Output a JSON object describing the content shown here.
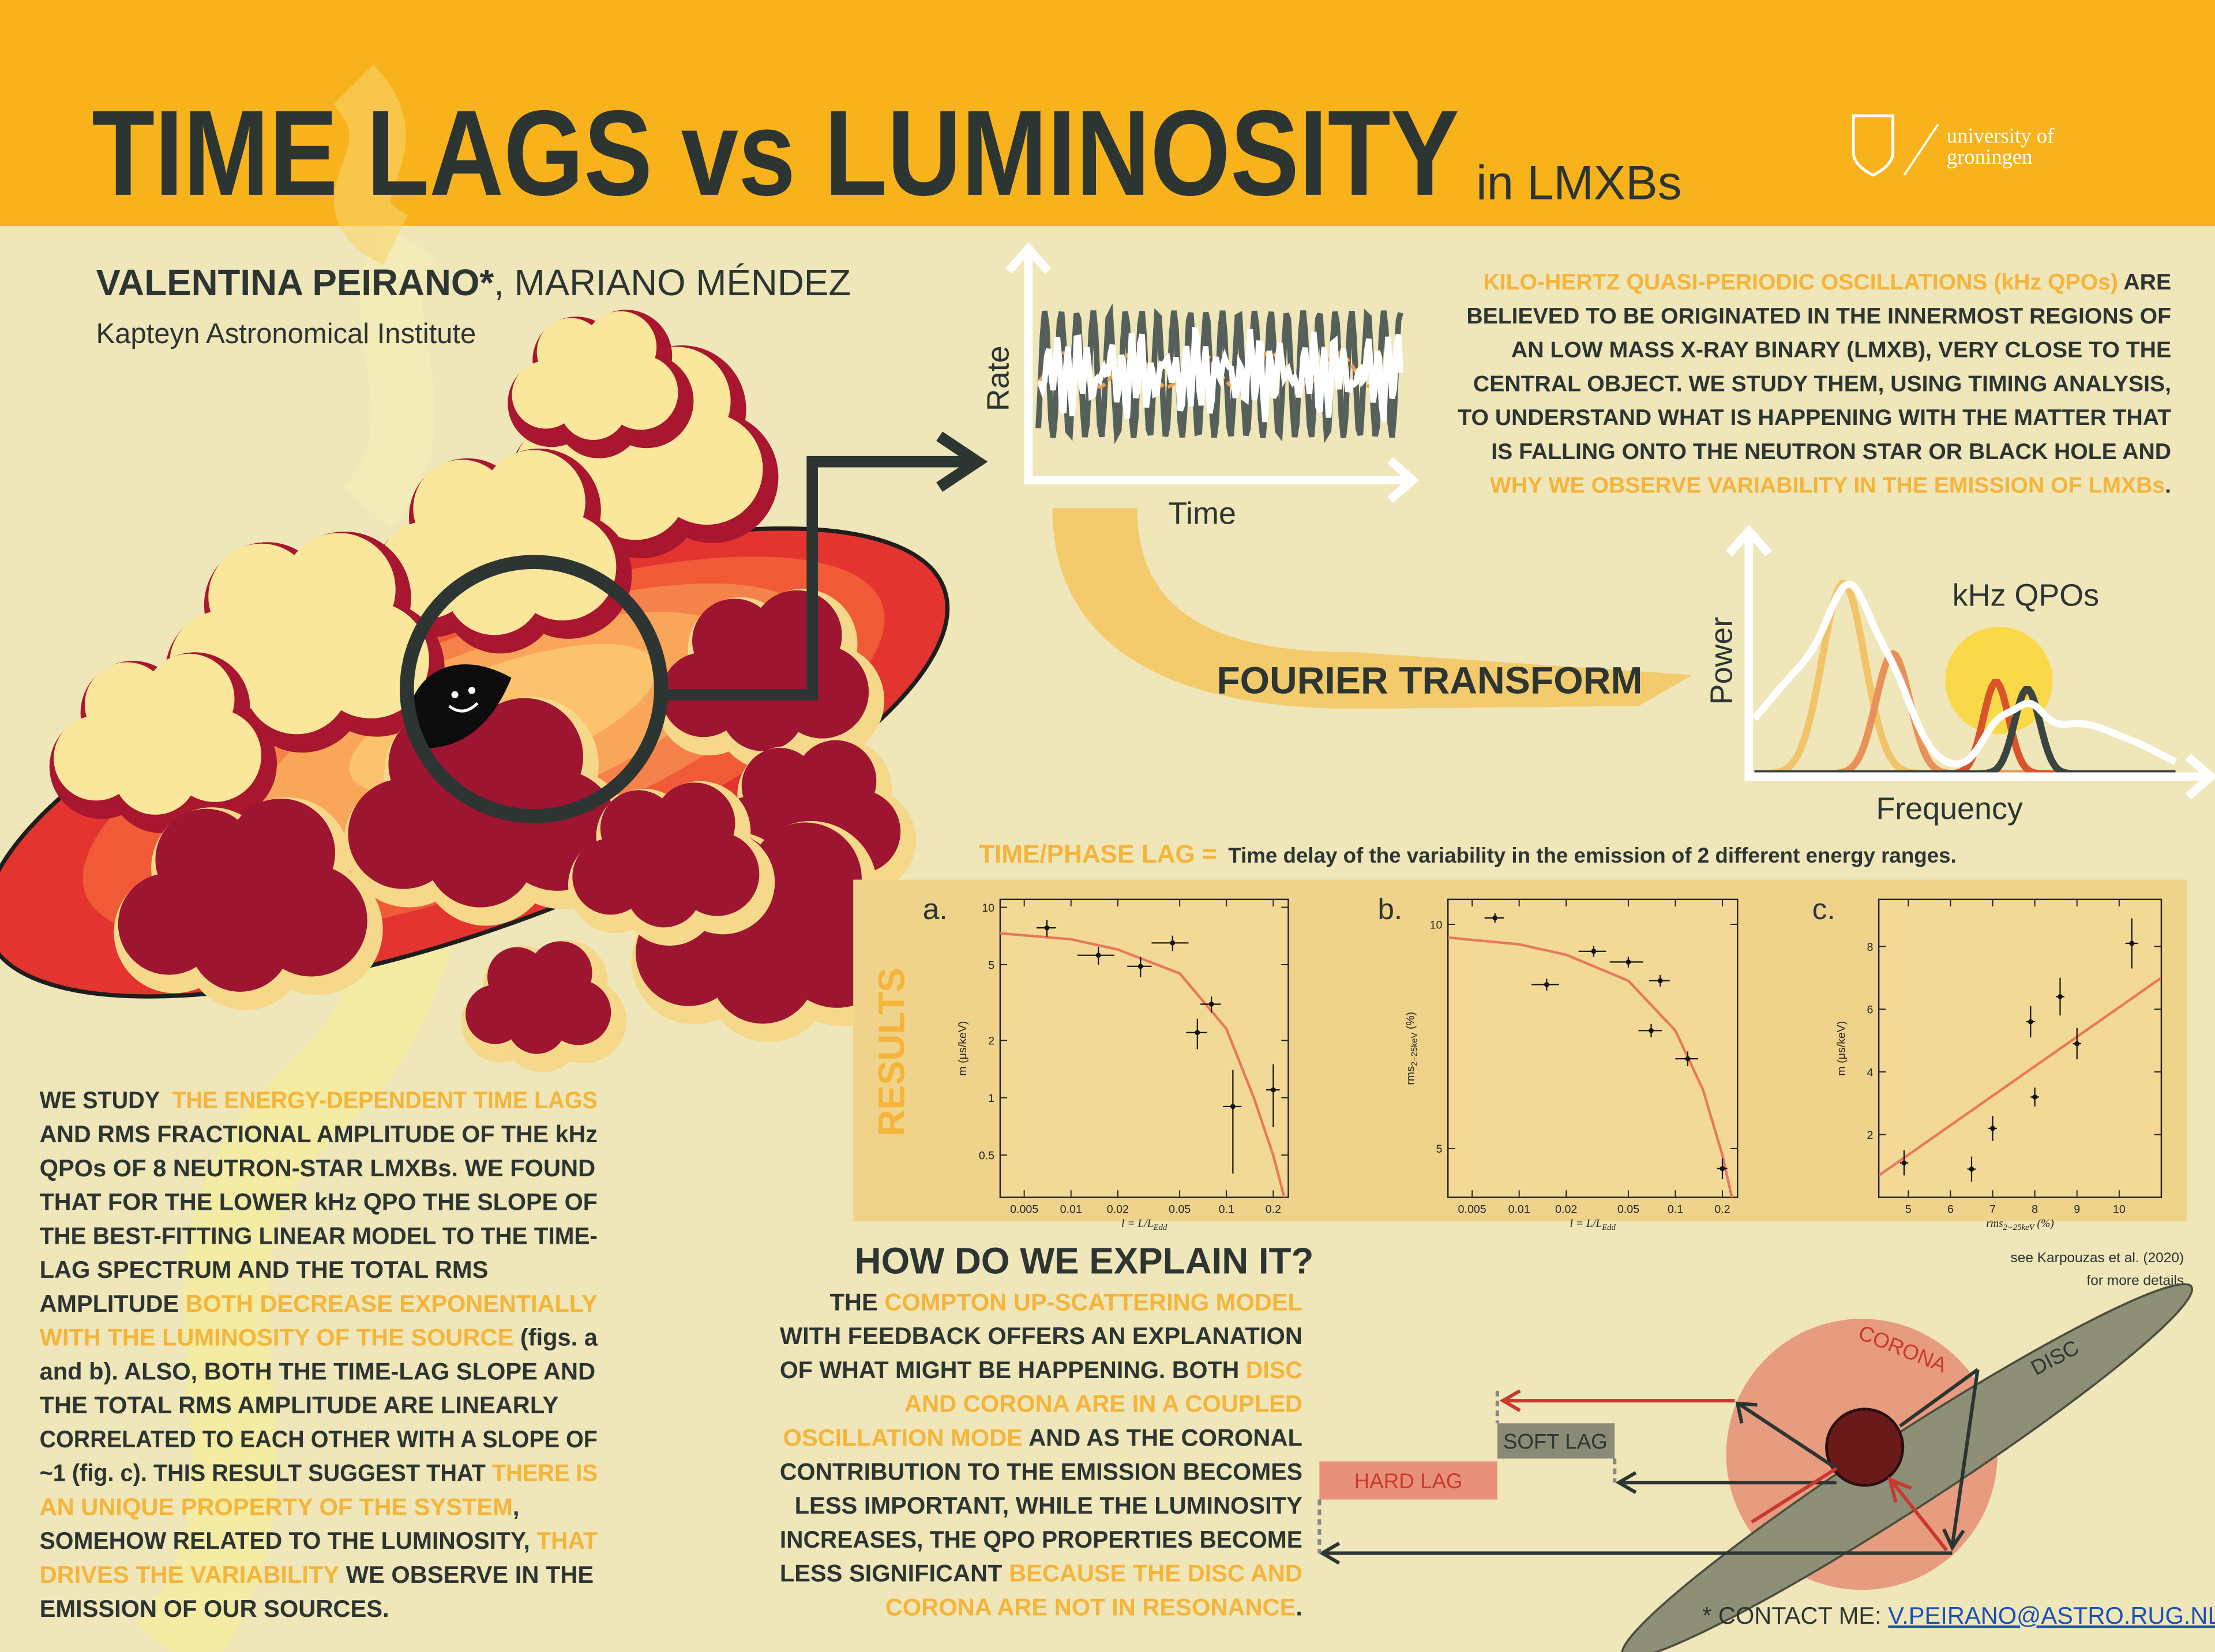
{
  "header": {
    "title": "TIME LAGS vs LUMINOSITY",
    "subtitle": "in LMXBs",
    "logo": [
      "university of",
      "groningen"
    ]
  },
  "authors": {
    "main": "VALENTINA PEIRANO*",
    "others": ", MARIANO MÉNDEZ",
    "institute": "Kapteyn Astronomical Institute"
  },
  "intro": {
    "lines": [
      [
        {
          "text": "KILO-HERTZ QUASI-PERIODIC OSCILLATIONS (kHz QPOs)",
          "hl": true
        },
        {
          "text": " ARE",
          "hl": false
        }
      ],
      [
        {
          "text": "BELIEVED TO BE ORIGINATED IN THE INNERMOST REGIONS OF",
          "hl": false
        }
      ],
      [
        {
          "text": "AN LOW MASS X-RAY BINARY (LMXB), VERY CLOSE TO THE",
          "hl": false
        }
      ],
      [
        {
          "text": "CENTRAL OBJECT. WE STUDY THEM, USING TIMING ANALYSIS,",
          "hl": false
        }
      ],
      [
        {
          "text": "TO UNDERSTAND WHAT IS HAPPENING WITH THE MATTER THAT",
          "hl": false
        }
      ],
      [
        {
          "text": "IS FALLING ONTO THE NEUTRON STAR OR BLACK HOLE AND",
          "hl": false
        }
      ],
      [
        {
          "text": "WHY WE OBSERVE VARIABILITY IN THE EMISSION OF LMXBs",
          "hl": true
        },
        {
          "text": ".",
          "hl": false
        }
      ]
    ]
  },
  "timing": {
    "rate": "Rate",
    "time": "Time",
    "fourier": "FOURIER TRANSFORM",
    "power": "Power",
    "frequency": "Frequency",
    "qpos": "kHz QPOs"
  },
  "lag_definition": {
    "term": "TIME/PHASE LAG =",
    "text": "Time delay of the variability in the emission of 2 different energy ranges."
  },
  "results": {
    "title": "RESULTS"
  },
  "plots": [
    {
      "label": "a.",
      "xlog": true,
      "ylog": true,
      "xlim": [
        0.0035,
        0.25
      ],
      "ylim": [
        0.3,
        11
      ],
      "xticks": [
        0.005,
        0.01,
        0.02,
        0.05,
        0.1,
        0.2
      ],
      "yticks": [
        0.5,
        1,
        2,
        5,
        10
      ],
      "xlabel": {
        "text": "l = L/L",
        "sub": "Edd"
      },
      "ylabel": {
        "text": "m (μs/keV)"
      },
      "x": [
        0.007,
        0.015,
        0.028,
        0.045,
        0.08,
        0.065,
        0.11,
        0.2
      ],
      "y": [
        7.8,
        5.6,
        4.9,
        6.5,
        3.1,
        2.2,
        0.9,
        1.1
      ],
      "xerr": [
        0.001,
        0.004,
        0.005,
        0.012,
        0.012,
        0.01,
        0.015,
        0.02
      ],
      "yerr": [
        0.8,
        0.6,
        0.6,
        0.6,
        0.3,
        0.4,
        0.5,
        0.4
      ],
      "curve": {
        "x": [
          0.0035,
          0.01,
          0.02,
          0.05,
          0.1,
          0.15,
          0.2,
          0.25
        ],
        "y": [
          7.3,
          6.8,
          6.0,
          4.5,
          2.3,
          1.0,
          0.5,
          0.25
        ]
      }
    },
    {
      "label": "b.",
      "xlog": true,
      "ylog": true,
      "xlim": [
        0.0035,
        0.25
      ],
      "ylim": [
        4.3,
        10.8
      ],
      "xticks": [
        0.005,
        0.01,
        0.02,
        0.05,
        0.1,
        0.2
      ],
      "yticks": [
        5,
        10
      ],
      "xlabel": {
        "text": "l = L/L",
        "sub": "Edd"
      },
      "ylabel": {
        "text": "rms",
        "sub": "2−25keV",
        "tail": " (%)"
      },
      "x": [
        0.007,
        0.015,
        0.03,
        0.05,
        0.08,
        0.07,
        0.12,
        0.2
      ],
      "y": [
        10.2,
        8.3,
        9.2,
        8.9,
        8.4,
        7.2,
        6.6,
        4.7
      ],
      "xerr": [
        0.001,
        0.003,
        0.006,
        0.012,
        0.012,
        0.012,
        0.02,
        0.015
      ],
      "yerr": [
        0.15,
        0.15,
        0.15,
        0.15,
        0.15,
        0.15,
        0.15,
        0.15
      ],
      "curve": {
        "x": [
          0.0035,
          0.01,
          0.02,
          0.05,
          0.1,
          0.15,
          0.2,
          0.23
        ],
        "y": [
          9.6,
          9.4,
          9.1,
          8.4,
          7.2,
          6.0,
          4.9,
          4.3
        ]
      }
    },
    {
      "label": "c.",
      "xlog": false,
      "ylog": false,
      "xlim": [
        4.3,
        11
      ],
      "ylim": [
        0,
        9.5
      ],
      "xticks": [
        5,
        6,
        7,
        8,
        9,
        10
      ],
      "yticks": [
        2,
        4,
        6,
        8
      ],
      "xlabel": {
        "text": "rms",
        "sub": "2−25keV",
        "tail": " (%)"
      },
      "ylabel": {
        "text": "m (μs/keV)"
      },
      "x": [
        4.9,
        6.5,
        7.0,
        7.9,
        8.0,
        8.6,
        9.0,
        10.3
      ],
      "y": [
        1.1,
        0.9,
        2.2,
        5.6,
        3.2,
        6.4,
        4.9,
        8.1
      ],
      "xerr": [
        0.1,
        0.1,
        0.1,
        0.1,
        0.1,
        0.1,
        0.1,
        0.15
      ],
      "yerr": [
        0.4,
        0.4,
        0.4,
        0.5,
        0.3,
        0.6,
        0.5,
        0.8
      ],
      "curve": {
        "x": [
          4.3,
          11
        ],
        "y": [
          0.7,
          7.0
        ]
      }
    }
  ],
  "study": {
    "lines": [
      [
        {
          "text": "WE STUDY  ",
          "hl": false
        },
        {
          "text": "THE ENERGY-DEPENDENT TIME LAGS",
          "hl": true
        }
      ],
      [
        {
          "text": "AND RMS FRACTIONAL AMPLITUDE OF THE kHz",
          "hl": false
        }
      ],
      [
        {
          "text": "QPOs OF 8 NEUTRON-STAR LMXBs. WE FOUND",
          "hl": false
        }
      ],
      [
        {
          "text": "THAT FOR THE LOWER kHz QPO THE SLOPE OF",
          "hl": false
        }
      ],
      [
        {
          "text": "THE BEST-FITTING LINEAR MODEL TO THE TIME-",
          "hl": false
        }
      ],
      [
        {
          "text": "LAG SPECTRUM AND THE TOTAL RMS",
          "hl": false
        }
      ],
      [
        {
          "text": "AMPLITUDE ",
          "hl": false
        },
        {
          "text": "BOTH DECREASE EXPONENTIALLY",
          "hl": true
        }
      ],
      [
        {
          "text": "WITH THE LUMINOSITY OF THE SOURCE",
          "hl": true
        },
        {
          "text": " (figs. a",
          "hl": false
        }
      ],
      [
        {
          "text": "and b). ALSO, BOTH THE TIME-LAG SLOPE AND",
          "hl": false
        }
      ],
      [
        {
          "text": "THE TOTAL RMS AMPLITUDE ARE LINEARLY",
          "hl": false
        }
      ],
      [
        {
          "text": "CORRELATED TO EACH OTHER WITH A SLOPE OF",
          "hl": false
        }
      ],
      [
        {
          "text": "~1 (fig. c). THIS RESULT SUGGEST THAT ",
          "hl": false
        },
        {
          "text": "THERE IS",
          "hl": true
        }
      ],
      [
        {
          "text": "AN UNIQUE PROPERTY OF THE SYSTEM",
          "hl": true
        },
        {
          "text": ",",
          "hl": false
        }
      ],
      [
        {
          "text": "SOMEHOW RELATED TO THE LUMINOSITY, ",
          "hl": false
        },
        {
          "text": "THAT",
          "hl": true
        }
      ],
      [
        {
          "text": "DRIVES THE VARIABILITY",
          "hl": true
        },
        {
          "text": " WE OBSERVE IN THE",
          "hl": false
        }
      ],
      [
        {
          "text": "EMISSION OF OUR SOURCES.",
          "hl": false
        }
      ]
    ]
  },
  "explain": {
    "title": "HOW DO WE EXPLAIN IT?",
    "reference": [
      "see Karpouzas et al. (2020)",
      "for more details"
    ],
    "lines": [
      [
        {
          "text": "THE ",
          "hl": false
        },
        {
          "text": "COMPTON UP-SCATTERING MODEL",
          "hl": true
        }
      ],
      [
        {
          "text": "WITH FEEDBACK OFFERS AN EXPLANATION",
          "hl": false
        }
      ],
      [
        {
          "text": "OF WHAT MIGHT BE HAPPENING. BOTH ",
          "hl": false
        },
        {
          "text": "DISC",
          "hl": true
        }
      ],
      [
        {
          "text": "AND CORONA ARE IN A COUPLED",
          "hl": true
        }
      ],
      [
        {
          "text": "OSCILLATION MODE",
          "hl": true
        },
        {
          "text": " AND AS THE CORONAL",
          "hl": false
        }
      ],
      [
        {
          "text": "CONTRIBUTION TO THE EMISSION BECOMES",
          "hl": false
        }
      ],
      [
        {
          "text": "LESS IMPORTANT, WHILE THE LUMINOSITY",
          "hl": false
        }
      ],
      [
        {
          "text": "INCREASES, THE QPO PROPERTIES BECOME",
          "hl": false
        }
      ],
      [
        {
          "text": "LESS SIGNIFICANT ",
          "hl": false
        },
        {
          "text": "BECAUSE THE DISC AND",
          "hl": true
        }
      ],
      [
        {
          "text": "CORONA ARE NOT IN RESONANCE",
          "hl": true
        },
        {
          "text": ".",
          "hl": false
        }
      ]
    ],
    "diagram": {
      "corona": "CORONA",
      "disc": "DISC",
      "soft_lag": "SOFT LAG",
      "hard_lag": "HARD LAG"
    }
  },
  "contact": {
    "label": "* CONTACT ME: ",
    "email": "V.PEIRANO@ASTRO.RUG.NL"
  }
}
